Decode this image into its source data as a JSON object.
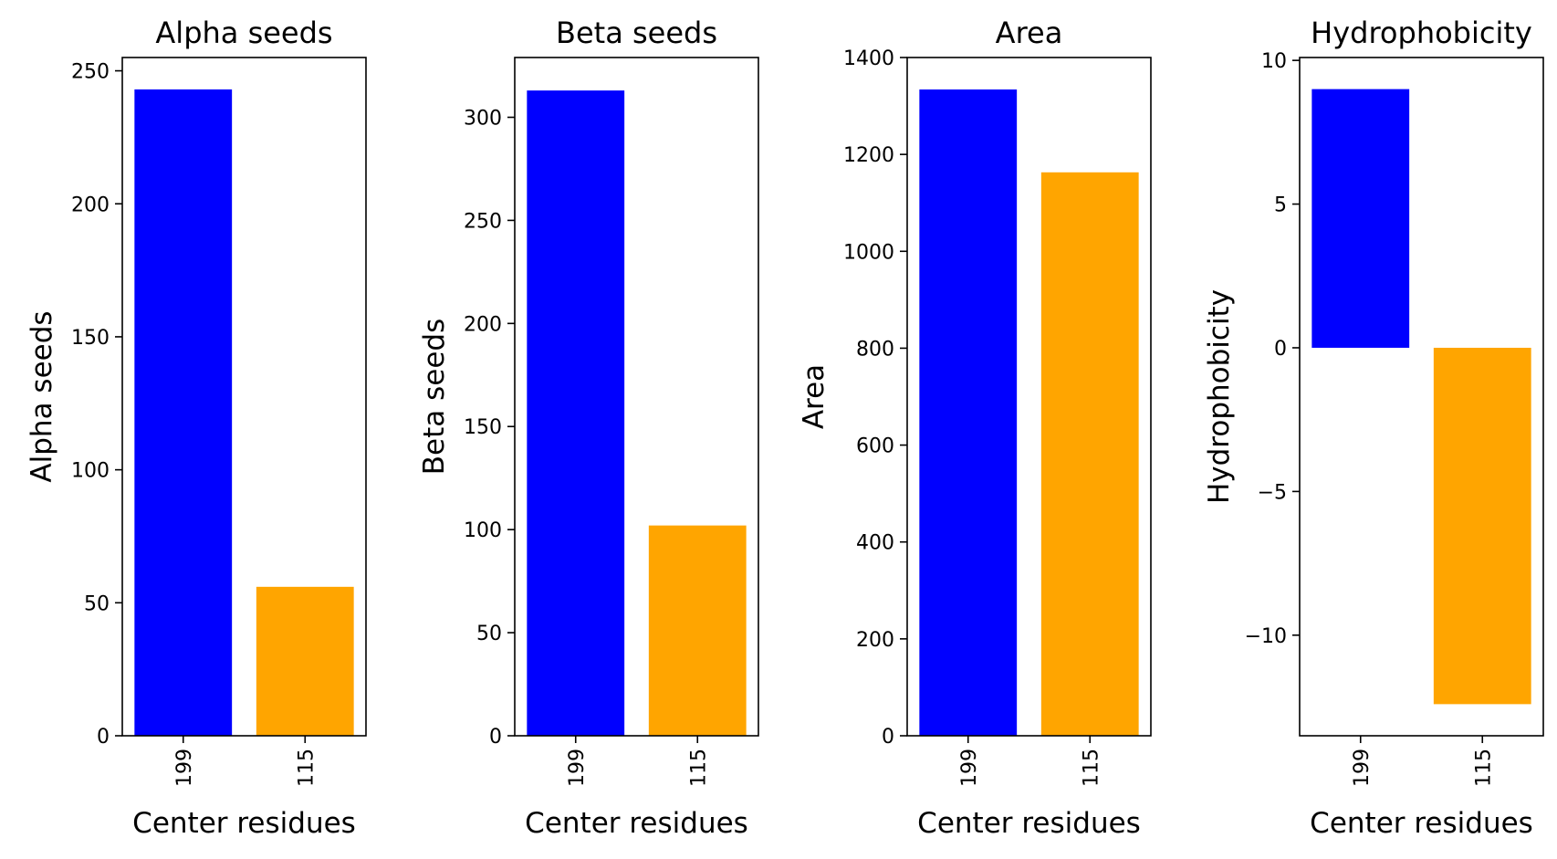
{
  "chart_data": [
    {
      "type": "bar",
      "title": "Alpha seeds",
      "xlabel": "Center residues",
      "ylabel": "Alpha seeds",
      "categories": [
        "199",
        "115"
      ],
      "values": [
        243,
        56
      ],
      "colors": [
        "#0000ff",
        "#ffa500"
      ],
      "ylim": [
        0,
        255
      ],
      "yticks": [
        0,
        50,
        100,
        150,
        200,
        250
      ],
      "ytick_labels": [
        "0",
        "50",
        "100",
        "150",
        "200",
        "250"
      ],
      "xtick_rotation": "vertical",
      "grid": false,
      "legend": "none"
    },
    {
      "type": "bar",
      "title": "Beta seeds",
      "xlabel": "Center residues",
      "ylabel": "Beta seeds",
      "categories": [
        "199",
        "115"
      ],
      "values": [
        313,
        102
      ],
      "colors": [
        "#0000ff",
        "#ffa500"
      ],
      "ylim": [
        0,
        329
      ],
      "yticks": [
        0,
        50,
        100,
        150,
        200,
        250,
        300
      ],
      "ytick_labels": [
        "0",
        "50",
        "100",
        "150",
        "200",
        "250",
        "300"
      ],
      "xtick_rotation": "vertical",
      "grid": false,
      "legend": "none"
    },
    {
      "type": "bar",
      "title": "Area",
      "xlabel": "Center residues",
      "ylabel": "Area",
      "categories": [
        "199",
        "115"
      ],
      "values": [
        1334,
        1163
      ],
      "colors": [
        "#0000ff",
        "#ffa500"
      ],
      "ylim": [
        0,
        1400
      ],
      "yticks": [
        0,
        200,
        400,
        600,
        800,
        1000,
        1200,
        1400
      ],
      "ytick_labels": [
        "0",
        "200",
        "400",
        "600",
        "800",
        "1000",
        "1200",
        "1400"
      ],
      "xtick_rotation": "vertical",
      "grid": false,
      "legend": "none"
    },
    {
      "type": "bar",
      "title": "Hydrophobicity",
      "xlabel": "Center residues",
      "ylabel": "Hydrophobicity",
      "categories": [
        "199",
        "115"
      ],
      "values": [
        9,
        -12.4
      ],
      "colors": [
        "#0000ff",
        "#ffa500"
      ],
      "ylim": [
        -13.5,
        10.1
      ],
      "yticks": [
        -10,
        -5,
        0,
        5,
        10
      ],
      "ytick_labels": [
        "−10",
        "−5",
        "0",
        "5",
        "10"
      ],
      "xtick_rotation": "vertical",
      "grid": false,
      "legend": "none"
    }
  ]
}
